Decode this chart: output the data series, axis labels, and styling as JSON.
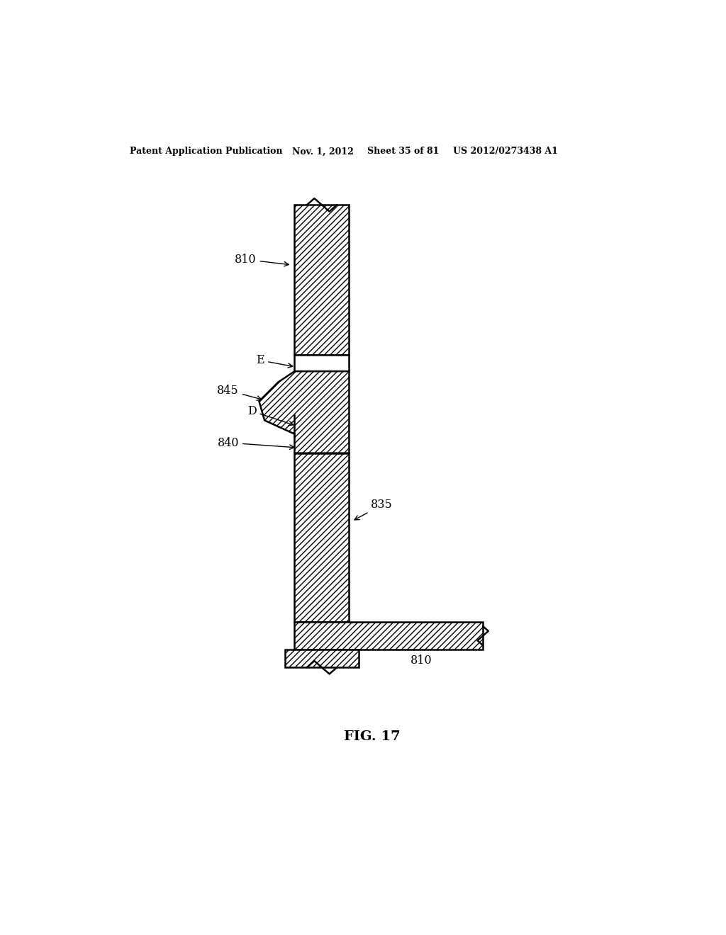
{
  "title_line1": "Patent Application Publication",
  "title_line2": "Nov. 1, 2012",
  "title_line3": "Sheet 35 of 81",
  "title_line4": "US 2012/0273438 A1",
  "fig_label": "FIG. 17",
  "bg_color": "#ffffff",
  "line_color": "#000000"
}
